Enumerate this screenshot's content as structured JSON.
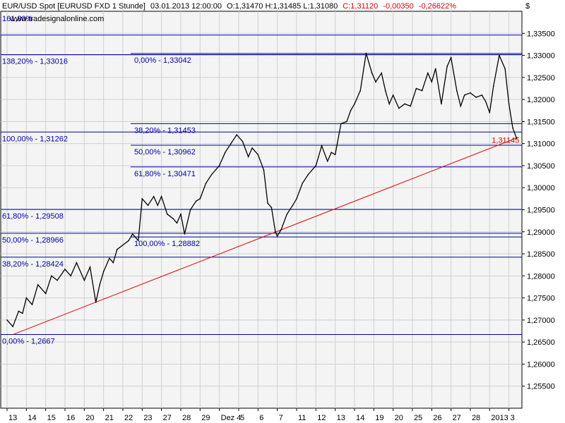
{
  "header": {
    "symbol": "EUR/USD Spot [EURUSD FXD  1 Stunde]",
    "datetime": "03.01.2013 12:00:00",
    "ohl": "O:1,31470 H:1,31485 L:1,31080",
    "close": "C:1,31120",
    "change": "-0,00350",
    "change_pct": "-0,26622%",
    "watermark": "www.tradesignalonline.com",
    "top_left_hidden": "161,80%"
  },
  "axis": {
    "currency_mark": "$"
  },
  "colors": {
    "background": "#ffffff",
    "plot_bg": "#f4f4f4",
    "grid": "#d0d0d0",
    "price": "#000000",
    "fib_line": "#0000aa",
    "fib_text": "#0000aa",
    "trend": "#dd0000",
    "header_text": "#000000",
    "header_change": "#dd0000"
  },
  "chart_data": {
    "type": "line",
    "title": "EUR/USD Spot [EURUSD FXD  1 Stunde]",
    "ylim": [
      1.25,
      1.34
    ],
    "y_ticks": [
      1.255,
      1.26,
      1.265,
      1.27,
      1.275,
      1.28,
      1.285,
      1.29,
      1.295,
      1.3,
      1.305,
      1.31,
      1.315,
      1.32,
      1.325,
      1.33,
      1.335
    ],
    "y_tick_labels": [
      "1,25500",
      "1,26000",
      "1,26500",
      "1,27000",
      "1,27500",
      "1,28000",
      "1,28500",
      "1,29000",
      "1,29500",
      "1,30000",
      "1,30500",
      "1,31000",
      "1,31500",
      "1,32000",
      "1,32500",
      "1,33000",
      "1,33500"
    ],
    "x_tick_labels": [
      "13",
      "14",
      "15",
      "16",
      "20",
      "21",
      "22",
      "23",
      "27",
      "28",
      "29",
      "Dez 4",
      "5",
      "6",
      "7",
      "11",
      "12",
      "13",
      "14",
      "19",
      "20",
      "25",
      "26",
      "27",
      "28",
      "2013",
      "3"
    ],
    "x_tick_positions": [
      0,
      1,
      2,
      3,
      4,
      5,
      6,
      7,
      8,
      9,
      10,
      11,
      12,
      13,
      14,
      15,
      16,
      17,
      18,
      19,
      20,
      21,
      22,
      23,
      24,
      25,
      26
    ],
    "x_range": [
      0,
      26.6
    ],
    "series": [
      {
        "x": [
          0,
          0.3,
          0.6,
          0.8,
          1.0,
          1.3,
          1.6,
          2.0,
          2.3,
          2.6,
          3.0,
          3.3,
          3.6,
          4.0,
          4.3,
          4.6,
          4.8,
          5.0,
          5.3,
          5.5,
          5.7,
          6.0,
          6.3,
          6.5,
          6.8,
          7.0,
          7.3,
          7.6,
          7.8,
          8.0,
          8.3,
          8.6,
          8.8,
          9.0,
          9.2,
          9.5,
          9.8,
          10.0,
          10.3,
          10.6,
          11.0,
          11.3,
          11.6,
          11.9,
          12.2,
          12.5,
          12.7,
          13.0,
          13.3,
          13.5,
          13.7,
          13.9,
          14.0,
          14.2,
          14.5,
          14.8,
          15.0,
          15.3,
          15.6,
          16.0,
          16.3,
          16.6,
          16.8,
          17.0,
          17.3,
          17.6,
          17.8,
          18.0,
          18.3,
          18.6,
          18.9,
          19.1,
          19.4,
          19.6,
          19.8,
          20.0,
          20.3,
          20.6,
          20.9,
          21.2,
          21.5,
          21.8,
          22.0,
          22.2,
          22.5,
          22.8,
          23.0,
          23.3,
          23.5,
          23.7,
          24.0,
          24.3,
          24.6,
          24.8,
          25.0,
          25.2,
          25.5,
          25.8,
          26.0,
          26.2,
          26.4
        ],
        "y": [
          1.27,
          1.2685,
          1.272,
          1.2715,
          1.275,
          1.2735,
          1.278,
          1.276,
          1.28,
          1.279,
          1.2815,
          1.28,
          1.283,
          1.279,
          1.282,
          1.274,
          1.278,
          1.281,
          1.284,
          1.283,
          1.286,
          1.287,
          1.288,
          1.2895,
          1.288,
          1.2975,
          1.296,
          1.298,
          1.296,
          1.298,
          1.294,
          1.293,
          1.292,
          1.294,
          1.2895,
          1.295,
          1.297,
          1.2975,
          1.301,
          1.303,
          1.305,
          1.308,
          1.31,
          1.312,
          1.3105,
          1.307,
          1.309,
          1.3075,
          1.304,
          1.2965,
          1.2955,
          1.29,
          1.289,
          1.2905,
          1.294,
          1.296,
          1.2975,
          1.301,
          1.303,
          1.305,
          1.3095,
          1.306,
          1.308,
          1.3075,
          1.3145,
          1.315,
          1.3175,
          1.319,
          1.322,
          1.3305,
          1.326,
          1.324,
          1.326,
          1.322,
          1.319,
          1.321,
          1.318,
          1.319,
          1.3185,
          1.3225,
          1.322,
          1.326,
          1.324,
          1.327,
          1.319,
          1.3275,
          1.3295,
          1.322,
          1.3185,
          1.321,
          1.3215,
          1.3205,
          1.321,
          1.3195,
          1.317,
          1.323,
          1.33,
          1.327,
          1.319,
          1.3135,
          1.3112
        ],
        "color": "#000000"
      }
    ],
    "fib_levels": [
      {
        "value": 1.3346,
        "label": ""
      },
      {
        "value": 1.33016,
        "label": "138,20% - 1,33016"
      },
      {
        "value": 1.33042,
        "label": "0,00% - 1,33042"
      },
      {
        "value": 1.31453,
        "label": "38,20% - 1,31453"
      },
      {
        "value": 1.31262,
        "label": "100,00% - 1,31262"
      },
      {
        "value": 1.30962,
        "label": "50,00% - 1,30962"
      },
      {
        "value": 1.30471,
        "label": "61,80% - 1,30471"
      },
      {
        "value": 1.29508,
        "label": "61,80% - 1,29508"
      },
      {
        "value": 1.28966,
        "label": "50,00% - 1,28966"
      },
      {
        "value": 1.28882,
        "label": "100,00% - 1,28882"
      },
      {
        "value": 1.28424,
        "label": "38,20% - 1,28424"
      },
      {
        "value": 1.2667,
        "label": "0,00% - 1,2667"
      }
    ],
    "trendline": {
      "x": [
        0.3,
        26.5
      ],
      "y": [
        1.2667,
        1.31145
      ],
      "label": "1,31145"
    }
  }
}
